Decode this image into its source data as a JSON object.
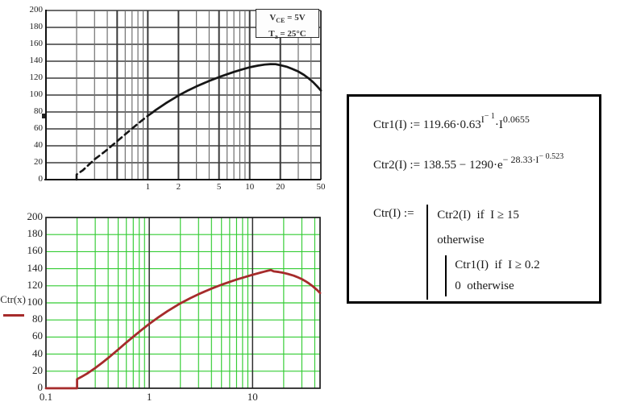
{
  "page": {
    "background": "#ffffff",
    "description": "Mathcad worksheet: optocoupler CTR datasheet scan, fitted Ctr(x) plot, and piecewise formula definitions"
  },
  "chart_data": [
    {
      "type": "line",
      "title": "Datasheet CTR curve (scanned)",
      "xscale": "log",
      "xlim": [
        0.1,
        50
      ],
      "ylim": [
        0,
        200
      ],
      "grid": "on",
      "yticks": [
        0,
        20,
        40,
        60,
        80,
        100,
        120,
        140,
        160,
        180,
        200
      ],
      "xticks": [
        1,
        2,
        5,
        10,
        20,
        50
      ],
      "annotation": {
        "lines": [
          {
            "base": "V",
            "sub": "CE",
            "rest": " = 5V"
          },
          {
            "base": "T",
            "sub": "a",
            "rest": " = 25°C"
          }
        ]
      },
      "colors": {
        "curve": "#161616",
        "grid_minor": "#707070",
        "grid_major": "#3a3a3a",
        "hline": "#3d3d3d",
        "axis": "#111111"
      },
      "series": [
        {
          "name": "CTR dashed segment",
          "dash": true,
          "points": [
            [
              0.2,
              0
            ],
            [
              0.2,
              6
            ],
            [
              0.23,
              11
            ],
            [
              0.26,
              17
            ],
            [
              0.3,
              24
            ],
            [
              0.35,
              30
            ],
            [
              0.4,
              35.5
            ],
            [
              0.5,
              45.4
            ],
            [
              0.6,
              53.5
            ],
            [
              0.7,
              60.4
            ],
            [
              0.85,
              68.7
            ],
            [
              1.0,
              75.4
            ],
            [
              1.1,
              79
            ]
          ]
        },
        {
          "name": "CTR solid segment",
          "dash": false,
          "points": [
            [
              1.1,
              79
            ],
            [
              1.2,
              82.4
            ],
            [
              1.5,
              90.3
            ],
            [
              2,
              99.4
            ],
            [
              2.5,
              105.6
            ],
            [
              3,
              110.2
            ],
            [
              4,
              116.7
            ],
            [
              5,
              121.2
            ],
            [
              6,
              124.6
            ],
            [
              7,
              127.3
            ],
            [
              8,
              129.4
            ],
            [
              10,
              132.9
            ],
            [
              12,
              134.8
            ],
            [
              14,
              136
            ],
            [
              16,
              136.6
            ],
            [
              18,
              136.5
            ],
            [
              20,
              135.3
            ],
            [
              23,
              133.5
            ],
            [
              26,
              131
            ],
            [
              30,
              127.8
            ],
            [
              34,
              124
            ],
            [
              38,
              119.7
            ],
            [
              42,
              115.2
            ],
            [
              46,
              110.3
            ],
            [
              50,
              105.4
            ]
          ]
        }
      ]
    },
    {
      "type": "line",
      "title": "Ctr(x) fitted piecewise function",
      "xscale": "log",
      "xlim": [
        0.1,
        45
      ],
      "ylim": [
        0,
        200
      ],
      "grid": "on",
      "ylabel": "Ctr(x)",
      "yticks": [
        0,
        20,
        40,
        60,
        80,
        100,
        120,
        140,
        160,
        180,
        200
      ],
      "xticks": [
        0.1,
        1,
        10
      ],
      "colors": {
        "curve": "#a62b2b",
        "grid": "#33cc33",
        "decade": "#2e2e2e",
        "border": "#1c1c1c"
      },
      "series": [
        {
          "name": "Ctr(x)",
          "dash": false,
          "points": [
            [
              0.1,
              0
            ],
            [
              0.2,
              0
            ],
            [
              0.2,
              10.7
            ],
            [
              0.22,
              13.3
            ],
            [
              0.25,
              17.2
            ],
            [
              0.3,
              23.7
            ],
            [
              0.35,
              29.8
            ],
            [
              0.4,
              35.5
            ],
            [
              0.5,
              45.4
            ],
            [
              0.6,
              53.6
            ],
            [
              0.7,
              60.4
            ],
            [
              0.85,
              68.7
            ],
            [
              1,
              75.4
            ],
            [
              1.2,
              82.4
            ],
            [
              1.5,
              90.3
            ],
            [
              2,
              99.4
            ],
            [
              2.5,
              105.6
            ],
            [
              3,
              110.2
            ],
            [
              4,
              116.7
            ],
            [
              5,
              121.2
            ],
            [
              6,
              124.6
            ],
            [
              7,
              127.3
            ],
            [
              8,
              129.4
            ],
            [
              10,
              132.9
            ],
            [
              12,
              135.5
            ],
            [
              13,
              136.6
            ],
            [
              14,
              137.6
            ],
            [
              15,
              138.5
            ],
            [
              16,
              136.9
            ],
            [
              18,
              136.1
            ],
            [
              20,
              135.1
            ],
            [
              22,
              133.9
            ],
            [
              25,
              131.9
            ],
            [
              27,
              130.3
            ],
            [
              30,
              127.8
            ],
            [
              33,
              124.9
            ],
            [
              35,
              122.9
            ],
            [
              38,
              119.7
            ],
            [
              40,
              117.5
            ],
            [
              42,
              115.2
            ],
            [
              45,
              111.6
            ]
          ]
        }
      ]
    }
  ],
  "formula_box": {
    "f1": {
      "name": "Ctr1(I)",
      "assign": " := ",
      "body": "119.66·0.63",
      "exp1": "I",
      "exp1e": "− 1",
      "mid": "·I",
      "exp2": "0.0655"
    },
    "f2": {
      "name": "Ctr2(I)",
      "assign": " := ",
      "body": "138.55 − 1290·e",
      "exp1": "− 28.33·I",
      "exp1e": "− 0.523"
    },
    "f3": {
      "name": "Ctr(I)",
      "assign": " := ",
      "row1": "Ctr2(I)  if  I ≥ 15",
      "row2": "otherwise",
      "row3": "Ctr1(I)  if  I ≥ 0.2",
      "row4": "0  otherwise"
    }
  }
}
